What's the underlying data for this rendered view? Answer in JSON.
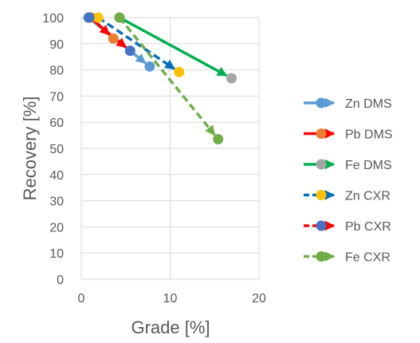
{
  "chart_data": {
    "type": "scatter",
    "xlabel": "Grade [%]",
    "ylabel": "Recovery [%]",
    "xlim": [
      0,
      20
    ],
    "ylim": [
      0,
      100
    ],
    "x_ticks": [
      0,
      10,
      20
    ],
    "y_ticks": [
      0,
      10,
      20,
      30,
      40,
      50,
      60,
      70,
      80,
      90,
      100
    ],
    "grid": "vertical-and-horizontal",
    "legend_position": "right",
    "series": [
      {
        "name": "Zn DMS",
        "line_color": "#5B9BD5",
        "start_marker_color": "#5B9BD5",
        "end_marker_color": "#5B9BD5",
        "dash": "solid",
        "points": [
          {
            "x": 0.8,
            "y": 100
          },
          {
            "x": 7.7,
            "y": 81.3
          }
        ]
      },
      {
        "name": "Pb DMS",
        "line_color": "#FF0000",
        "start_marker_color": "#ED7D31",
        "end_marker_color": "#ED7D31",
        "dash": "solid",
        "points": [
          {
            "x": 1.1,
            "y": 100
          },
          {
            "x": 3.6,
            "y": 92
          }
        ]
      },
      {
        "name": "Fe DMS",
        "line_color": "#00B050",
        "start_marker_color": "#A5A5A5",
        "end_marker_color": "#A5A5A5",
        "dash": "solid",
        "points": [
          {
            "x": 4.3,
            "y": 100
          },
          {
            "x": 16.9,
            "y": 76.8
          }
        ]
      },
      {
        "name": "Zn CXR",
        "line_color": "#0070C0",
        "start_marker_color": "#FFC000",
        "end_marker_color": "#FFC000",
        "dash": "dashed",
        "points": [
          {
            "x": 1.9,
            "y": 100
          },
          {
            "x": 11.0,
            "y": 79.2
          }
        ]
      },
      {
        "name": "Pb CXR",
        "line_color": "#FF0000",
        "start_marker_color": "#4472C4",
        "end_marker_color": "#4472C4",
        "dash": "dashed",
        "points": [
          {
            "x": 0.9,
            "y": 100
          },
          {
            "x": 5.5,
            "y": 87.3
          }
        ]
      },
      {
        "name": "Fe CXR",
        "line_color": "#70AD47",
        "start_marker_color": "#70AD47",
        "end_marker_color": "#70AD47",
        "dash": "dashed",
        "points": [
          {
            "x": 4.3,
            "y": 100
          },
          {
            "x": 15.4,
            "y": 53.5
          }
        ]
      }
    ]
  }
}
